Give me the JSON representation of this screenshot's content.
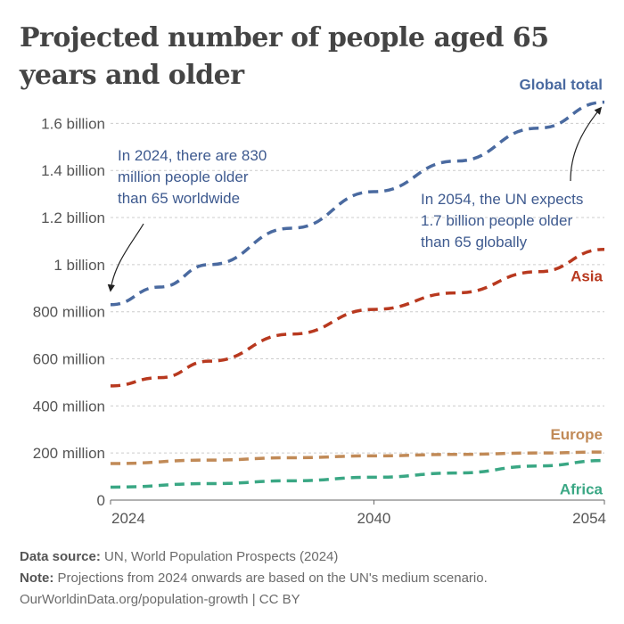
{
  "title": "Projected number of people aged 65 years and older",
  "colors": {
    "global": "#4a6aa0",
    "asia": "#b8391f",
    "europe": "#c18a57",
    "africa": "#3aa784",
    "grid": "#cccccc",
    "axis": "#666666",
    "annotation": "#3e5a8f"
  },
  "chart_data": {
    "type": "line",
    "style": "dashed (projection)",
    "x_ticks": [
      "2024",
      "2040",
      "2054"
    ],
    "xlim": [
      2024,
      2054
    ],
    "y_ticks": [
      {
        "value": 0,
        "label": "0"
      },
      {
        "value": 200000000,
        "label": "200 million"
      },
      {
        "value": 400000000,
        "label": "400 million"
      },
      {
        "value": 600000000,
        "label": "600 million"
      },
      {
        "value": 800000000,
        "label": "800 million"
      },
      {
        "value": 1000000000,
        "label": "1 billion"
      },
      {
        "value": 1200000000,
        "label": "1.2 billion"
      },
      {
        "value": 1400000000,
        "label": "1.4 billion"
      },
      {
        "value": 1600000000,
        "label": "1.6 billion"
      }
    ],
    "ylim": [
      0,
      1700000000
    ],
    "series": [
      {
        "key": "global",
        "name": "Global total",
        "x": [
          2024,
          2027,
          2030,
          2035,
          2040,
          2045,
          2050,
          2054
        ],
        "values": [
          830000000,
          905000000,
          1000000000,
          1155000000,
          1310000000,
          1440000000,
          1580000000,
          1690000000
        ]
      },
      {
        "key": "asia",
        "name": "Asia",
        "x": [
          2024,
          2027,
          2030,
          2035,
          2040,
          2045,
          2050,
          2054
        ],
        "values": [
          485000000,
          520000000,
          590000000,
          705000000,
          810000000,
          880000000,
          970000000,
          1065000000
        ]
      },
      {
        "key": "europe",
        "name": "Europe",
        "x": [
          2024,
          2030,
          2035,
          2040,
          2045,
          2050,
          2054
        ],
        "values": [
          155000000,
          170000000,
          180000000,
          188000000,
          194000000,
          200000000,
          204000000
        ]
      },
      {
        "key": "africa",
        "name": "Africa",
        "x": [
          2024,
          2030,
          2035,
          2040,
          2045,
          2050,
          2054
        ],
        "values": [
          55000000,
          70000000,
          82000000,
          97000000,
          115000000,
          145000000,
          168000000
        ]
      }
    ],
    "annotations": [
      {
        "text": "In 2024, there are 830 million people older than 65 worldwide",
        "lines": [
          "In 2024, there are 830",
          "million people older",
          "than 65 worldwide"
        ]
      },
      {
        "text": "In 2054, the UN expects 1.7 billion people older than 65 globally",
        "lines": [
          "In 2054, the UN expects",
          "1.7 billion people older",
          "than 65 globally"
        ]
      }
    ]
  },
  "footer": {
    "source_label": "Data source:",
    "source_text": "UN, World Population Prospects (2024)",
    "note_label": "Note:",
    "note_text": "Projections from 2024 onwards are based on the UN's medium scenario.",
    "credit": "OurWorldinData.org/population-growth | CC BY"
  }
}
